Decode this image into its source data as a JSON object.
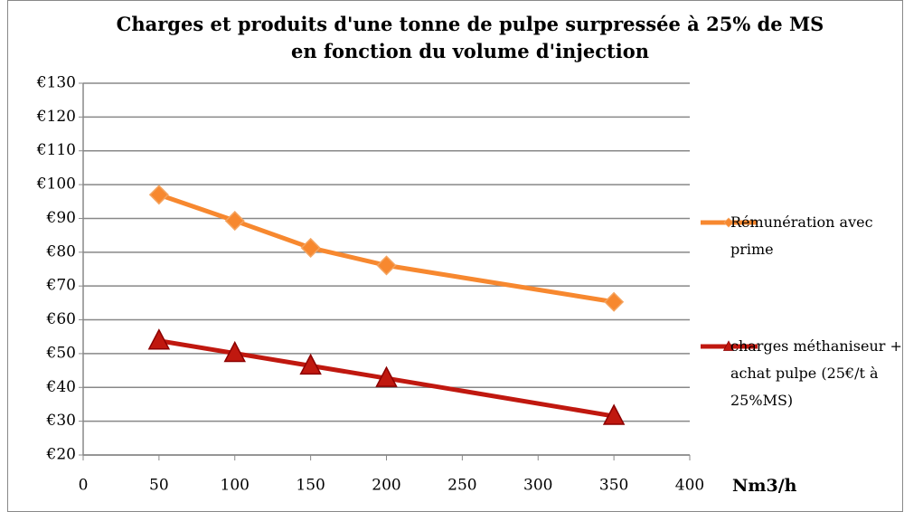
{
  "chart_data": {
    "type": "line",
    "title": "Charges et produits d'une tonne de pulpe surpressée à 25% de MS en fonction du volume d'injection",
    "x_label": "Nm3/h",
    "x": [
      50,
      100,
      150,
      200,
      350
    ],
    "series": [
      {
        "name": "Rémunération avec prime",
        "color": "#f7882f",
        "marker": "diamond",
        "values": [
          97,
          89.3,
          81.3,
          76.1,
          65.3
        ]
      },
      {
        "name": "charges méthaniseur + achat pulpe (25€/t à 25%MS)",
        "color": "#c0180f",
        "marker": "triangle",
        "values": [
          53.8,
          50.1,
          46.4,
          42.7,
          31.5
        ]
      }
    ],
    "xlim": [
      0,
      400
    ],
    "xticks": [
      0,
      50,
      100,
      150,
      200,
      250,
      300,
      350,
      400
    ],
    "ylim": [
      20,
      130
    ],
    "yticks": [
      {
        "value": 20,
        "label": "€20"
      },
      {
        "value": 30,
        "label": "€30"
      },
      {
        "value": 40,
        "label": "€40"
      },
      {
        "value": 50,
        "label": "€50"
      },
      {
        "value": 60,
        "label": "€60"
      },
      {
        "value": 70,
        "label": "€70"
      },
      {
        "value": 80,
        "label": "€80"
      },
      {
        "value": 90,
        "label": "€90"
      },
      {
        "value": 100,
        "label": "€100"
      },
      {
        "value": 110,
        "label": "€110"
      },
      {
        "value": 120,
        "label": "€120"
      },
      {
        "value": 130,
        "label": "€130"
      }
    ],
    "grid": true,
    "legend": "right"
  }
}
